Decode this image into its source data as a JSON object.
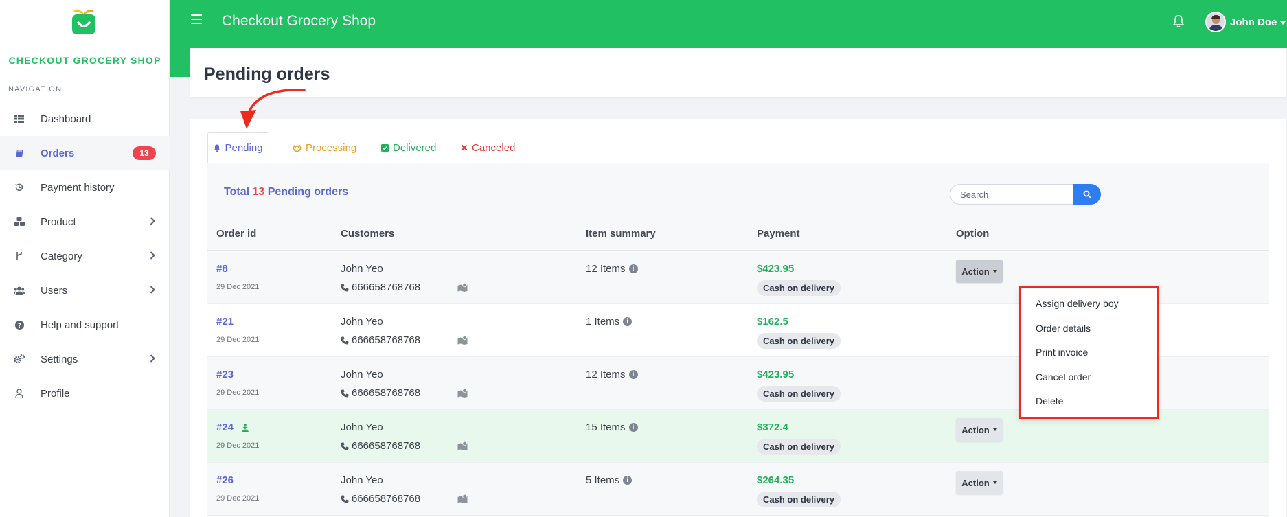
{
  "app": {
    "brand": "CHECKOUT GROCERY SHOP",
    "title": "Checkout Grocery Shop",
    "accent_color": "#21c063"
  },
  "user": {
    "name": "John Doe"
  },
  "sidebar": {
    "heading": "NAVIGATION",
    "items": [
      {
        "label": "Dashboard",
        "icon": "grid-icon"
      },
      {
        "label": "Orders",
        "icon": "book-icon",
        "badge": "13",
        "active": true
      },
      {
        "label": "Payment history",
        "icon": "history-icon"
      },
      {
        "label": "Product",
        "icon": "cubes-icon",
        "has_children": true
      },
      {
        "label": "Category",
        "icon": "fork-icon",
        "has_children": true
      },
      {
        "label": "Users",
        "icon": "users-icon",
        "has_children": true
      },
      {
        "label": "Help and support",
        "icon": "question-icon"
      },
      {
        "label": "Settings",
        "icon": "gears-icon",
        "has_children": true
      },
      {
        "label": "Profile",
        "icon": "user-icon"
      }
    ]
  },
  "page": {
    "title": "Pending orders"
  },
  "tabs": [
    {
      "label": "Pending",
      "icon": "bell-icon",
      "color": "#5a67d8",
      "active": true
    },
    {
      "label": "Processing",
      "icon": "spinner-icon",
      "color": "#f0a020"
    },
    {
      "label": "Delivered",
      "icon": "check-square-icon",
      "color": "#21b15a"
    },
    {
      "label": "Canceled",
      "icon": "x-icon",
      "color": "#e53935"
    }
  ],
  "summary": {
    "prefix": "Total",
    "count": "13",
    "suffix": "Pending orders"
  },
  "search": {
    "placeholder": "Search"
  },
  "table": {
    "headers": [
      "Order id",
      "Customers",
      "Item summary",
      "Payment",
      "Option"
    ],
    "rows": [
      {
        "id": "#8",
        "date": "29 Dec 2021",
        "customer": "John Yeo",
        "phone": "666658768768",
        "items": "12 Items",
        "amount": "$423.95",
        "method": "Cash on delivery",
        "action": "Action",
        "style": "normal",
        "dropdown_open": true
      },
      {
        "id": "#21",
        "date": "29 Dec 2021",
        "customer": "John Yeo",
        "phone": "666658768768",
        "items": "1 Items",
        "amount": "$162.5",
        "method": "Cash on delivery",
        "action": "Action",
        "style": "alt"
      },
      {
        "id": "#23",
        "date": "29 Dec 2021",
        "customer": "John Yeo",
        "phone": "666658768768",
        "items": "12 Items",
        "amount": "$423.95",
        "method": "Cash on delivery",
        "action": "Action",
        "style": "normal"
      },
      {
        "id": "#24",
        "date": "29 Dec 2021",
        "customer": "John Yeo",
        "phone": "666658768768",
        "items": "15 Items",
        "amount": "$372.4",
        "method": "Cash on delivery",
        "action": "Action",
        "style": "highlight",
        "rider_icon": true
      },
      {
        "id": "#26",
        "date": "29 Dec 2021",
        "customer": "John Yeo",
        "phone": "666658768768",
        "items": "5 Items",
        "amount": "$264.35",
        "method": "Cash on delivery",
        "action": "Action",
        "style": "normal"
      }
    ]
  },
  "action_menu": {
    "items": [
      "Assign delivery boy",
      "Order details",
      "Print invoice",
      "Cancel order",
      "Delete"
    ],
    "highlight_color": "#ee2a1b"
  }
}
